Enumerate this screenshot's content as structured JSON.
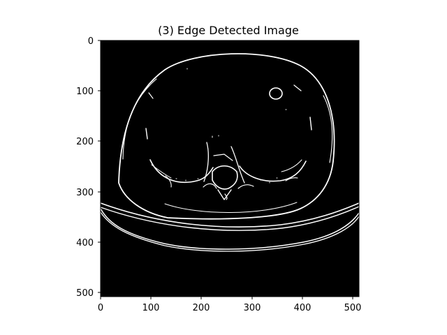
{
  "figure": {
    "title": "(3) Edge Detected Image",
    "background": "#ffffff",
    "image_background": "#000000",
    "edge_color": "#ffffff"
  },
  "axes": {
    "x": {
      "ticks": [
        0,
        100,
        200,
        300,
        400,
        500
      ],
      "labels": [
        "0",
        "100",
        "200",
        "300",
        "400",
        "500"
      ],
      "range": [
        0,
        512
      ]
    },
    "y": {
      "ticks": [
        0,
        100,
        200,
        300,
        400,
        500
      ],
      "labels": [
        "0",
        "100",
        "200",
        "300",
        "400",
        "500"
      ],
      "range": [
        0,
        512
      ],
      "inverted": true
    }
  }
}
